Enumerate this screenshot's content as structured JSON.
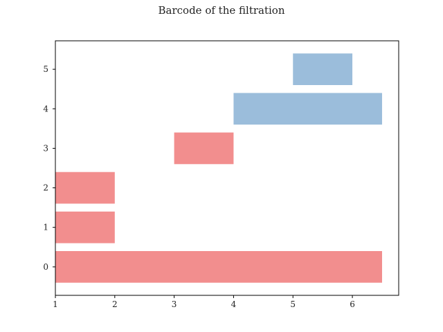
{
  "chart_data": {
    "type": "bar",
    "orientation": "horizontal-intervals",
    "title": "Barcode of the filtration",
    "xlabel": "",
    "ylabel": "",
    "xlim": [
      1,
      6.78
    ],
    "ylim": [
      -0.72,
      5.72
    ],
    "x_ticks": [
      "1",
      "2",
      "3",
      "4",
      "5",
      "6"
    ],
    "y_ticks": [
      "0",
      "1",
      "2",
      "3",
      "4",
      "5"
    ],
    "grid": false,
    "bars": [
      {
        "y": 0,
        "start": 1,
        "end": 6.5,
        "color": "#f28e8e"
      },
      {
        "y": 1,
        "start": 1,
        "end": 2,
        "color": "#f28e8e"
      },
      {
        "y": 2,
        "start": 1,
        "end": 2,
        "color": "#f28e8e"
      },
      {
        "y": 3,
        "start": 3,
        "end": 4,
        "color": "#f28e8e"
      },
      {
        "y": 4,
        "start": 4,
        "end": 6.5,
        "color": "#9bbddb"
      },
      {
        "y": 5,
        "start": 5,
        "end": 6,
        "color": "#9bbddb"
      }
    ]
  }
}
